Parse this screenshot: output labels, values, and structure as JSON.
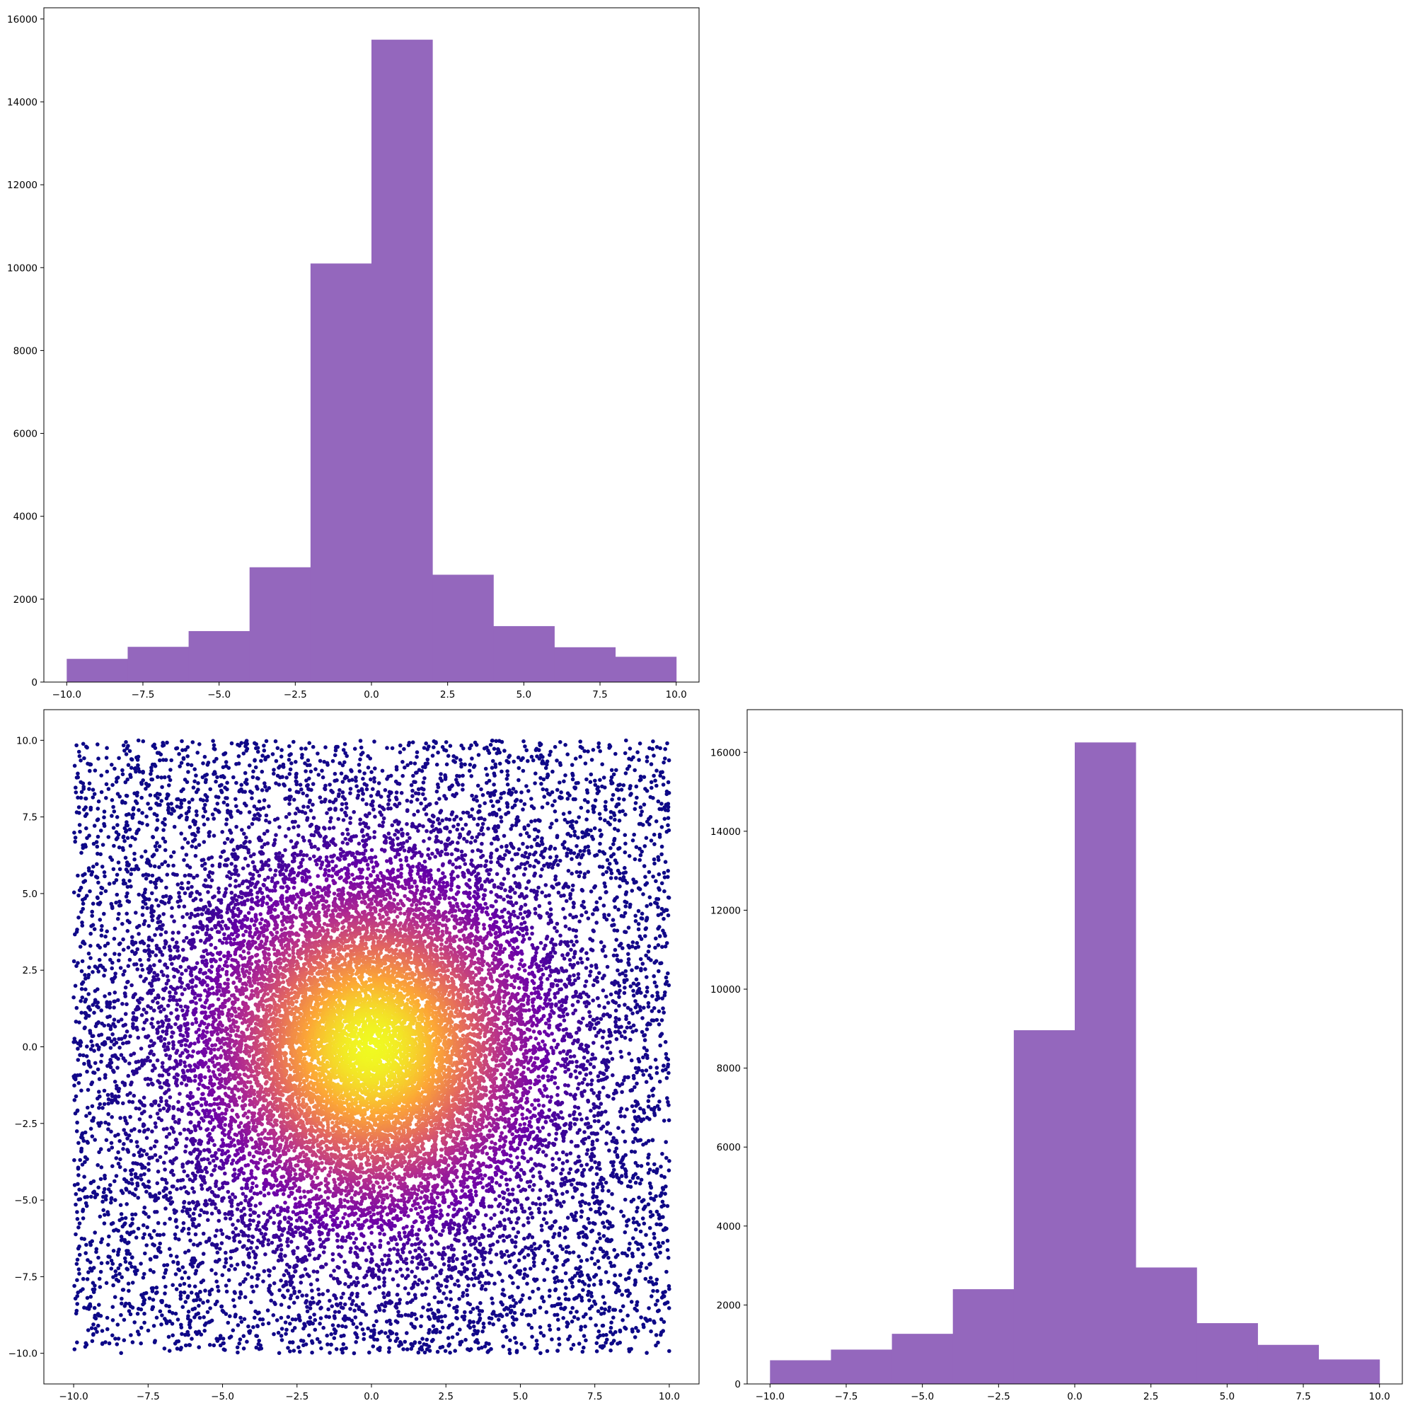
{
  "chart_data": [
    {
      "type": "bar",
      "subplot": "top-left",
      "color": "#9467bd",
      "bin_edges": [
        -10,
        -8,
        -6,
        -4,
        -2,
        0,
        2,
        4,
        6,
        8,
        10
      ],
      "values": [
        560,
        850,
        1230,
        2770,
        10100,
        15500,
        2590,
        1350,
        840,
        610
      ],
      "xlim": [
        -10.75,
        10.75
      ],
      "ylim": [
        0,
        16270
      ],
      "xticks": [
        -10.0,
        -7.5,
        -5.0,
        -2.5,
        0.0,
        2.5,
        5.0,
        7.5,
        10.0
      ],
      "xtick_labels": [
        "−10.0",
        "−7.5",
        "−5.0",
        "−2.5",
        "0.0",
        "2.5",
        "5.0",
        "7.5",
        "10.0"
      ],
      "yticks": [
        0,
        2000,
        4000,
        6000,
        8000,
        10000,
        12000,
        14000,
        16000
      ],
      "ytick_labels": [
        "0",
        "2000",
        "4000",
        "6000",
        "8000",
        "10000",
        "12000",
        "14000",
        "16000"
      ],
      "title": "",
      "xlabel": "",
      "ylabel": ""
    },
    {
      "type": "scatter",
      "subplot": "bottom-left",
      "colormap": "plasma",
      "color_stops": [
        "#0d0887",
        "#6a00a8",
        "#b12a90",
        "#e16462",
        "#fca636",
        "#f0f921"
      ],
      "x_range": [
        -10,
        10
      ],
      "y_range": [
        -10,
        10
      ],
      "point_count": 20000,
      "distribution": "uniform square mixed with a dense normal cluster at (0, 0); color = point density",
      "xlim": [
        -11,
        11
      ],
      "ylim": [
        -11,
        11
      ],
      "xticks": [
        -10.0,
        -7.5,
        -5.0,
        -2.5,
        0.0,
        2.5,
        5.0,
        7.5,
        10.0
      ],
      "xtick_labels": [
        "−10.0",
        "−7.5",
        "−5.0",
        "−2.5",
        "0.0",
        "2.5",
        "5.0",
        "7.5",
        "10.0"
      ],
      "yticks": [
        -10.0,
        -7.5,
        -5.0,
        -2.5,
        0.0,
        2.5,
        5.0,
        7.5,
        10.0
      ],
      "ytick_labels": [
        "−10.0",
        "−7.5",
        "−5.0",
        "−2.5",
        "0.0",
        "2.5",
        "5.0",
        "7.5",
        "10.0"
      ],
      "title": "",
      "xlabel": "",
      "ylabel": ""
    },
    {
      "type": "bar",
      "subplot": "bottom-right",
      "color": "#9467bd",
      "bin_edges": [
        -10,
        -8,
        -6,
        -4,
        -2,
        0,
        2,
        4,
        6,
        8,
        10
      ],
      "values": [
        600,
        870,
        1270,
        2400,
        8960,
        16250,
        2950,
        1540,
        990,
        620
      ],
      "xlim": [
        -10.75,
        10.75
      ],
      "ylim": [
        0,
        17080
      ],
      "xticks": [
        -10.0,
        -7.5,
        -5.0,
        -2.5,
        0.0,
        2.5,
        5.0,
        7.5,
        10.0
      ],
      "xtick_labels": [
        "−10.0",
        "−7.5",
        "−5.0",
        "−2.5",
        "0.0",
        "2.5",
        "5.0",
        "7.5",
        "10.0"
      ],
      "yticks": [
        0,
        2000,
        4000,
        6000,
        8000,
        10000,
        12000,
        14000,
        16000
      ],
      "ytick_labels": [
        "0",
        "2000",
        "4000",
        "6000",
        "8000",
        "10000",
        "12000",
        "14000",
        "16000"
      ],
      "title": "",
      "xlabel": "",
      "ylabel": ""
    }
  ]
}
